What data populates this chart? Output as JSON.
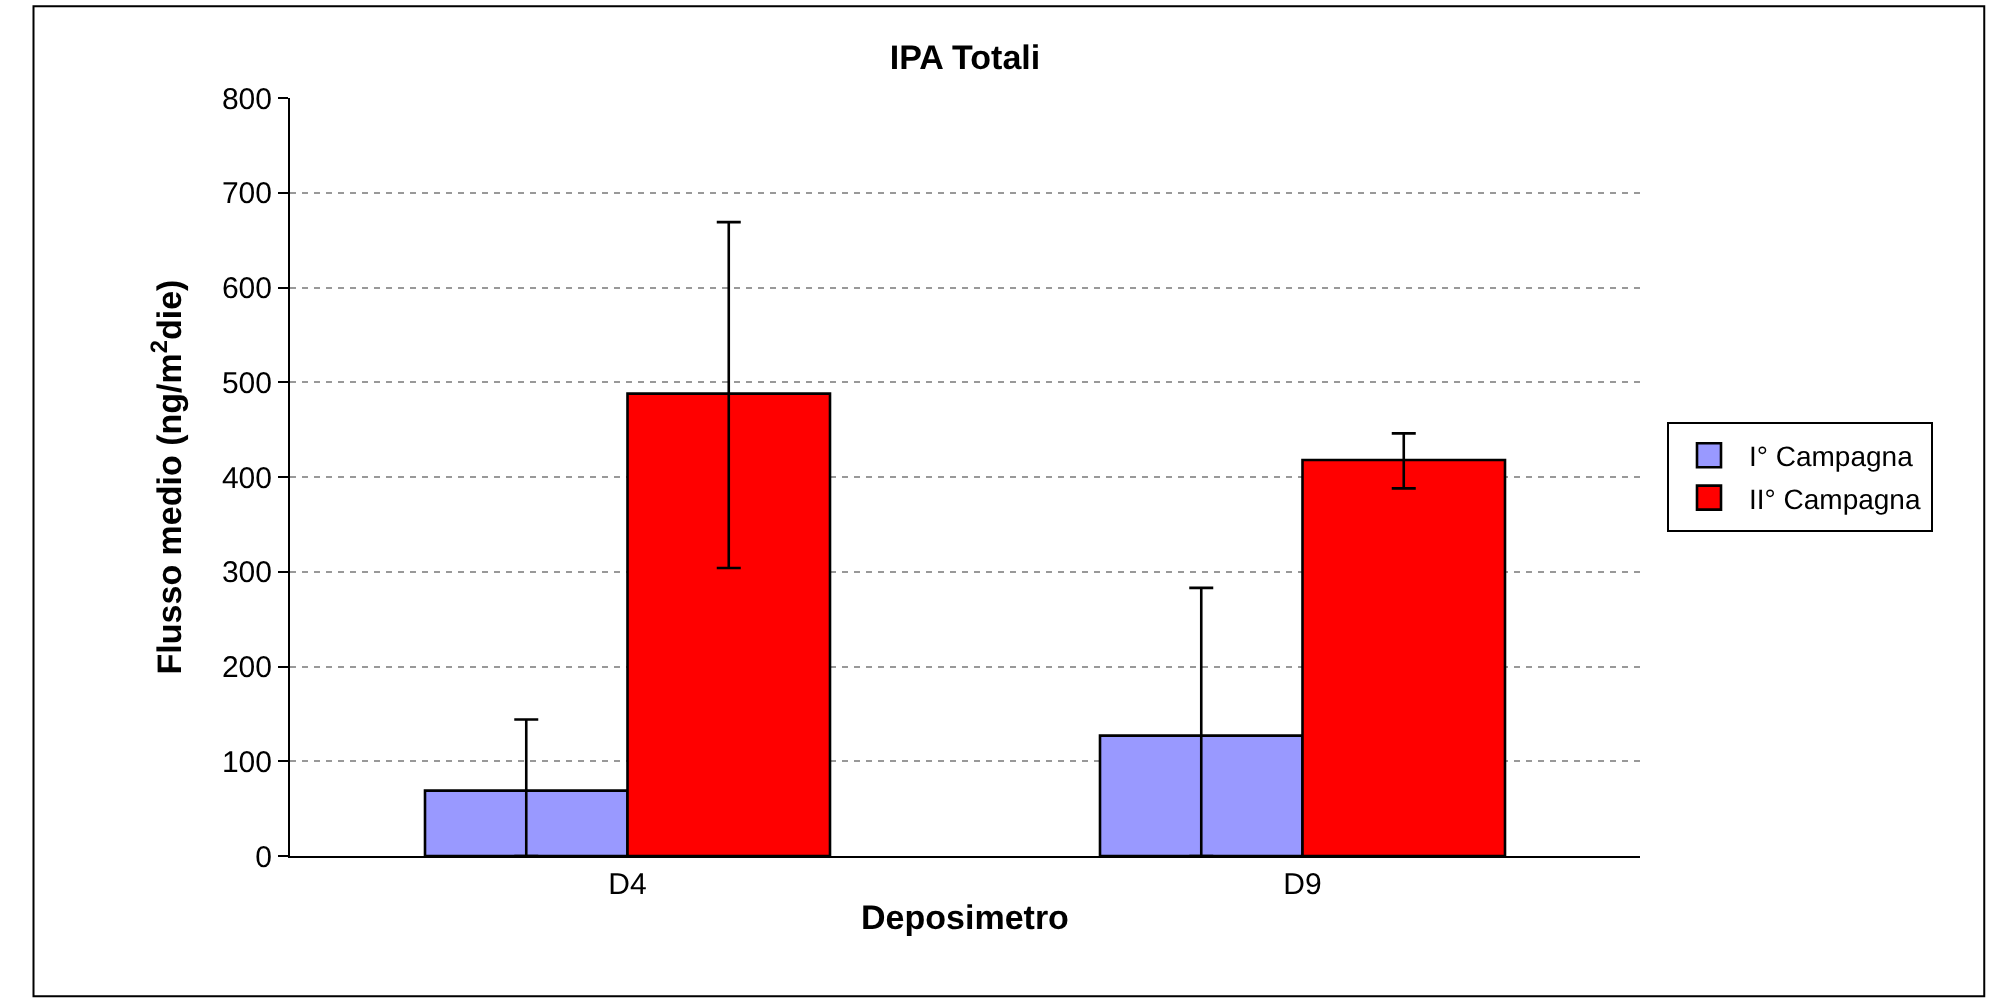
{
  "chart_data": {
    "type": "bar",
    "title": "IPA Totali",
    "xlabel": "Deposimetro",
    "ylabel": "Flusso medio (ng/m$^{2}$die)",
    "categories": [
      "D4",
      "D9"
    ],
    "series": [
      {
        "name": "I° Campagna",
        "color": "#9999ff",
        "values": [
          69,
          127
        ],
        "errors": [
          [
            0,
            144
          ],
          [
            0,
            283
          ]
        ]
      },
      {
        "name": "II° Campagna",
        "color": "#ff0000",
        "values": [
          488,
          418
        ],
        "errors": [
          [
            304,
            669
          ],
          [
            388,
            446
          ]
        ]
      }
    ],
    "ylim": [
      0,
      800
    ],
    "yticks": [
      0,
      100,
      200,
      300,
      400,
      500,
      600,
      700,
      800
    ],
    "grid": "y",
    "legend": "right"
  }
}
